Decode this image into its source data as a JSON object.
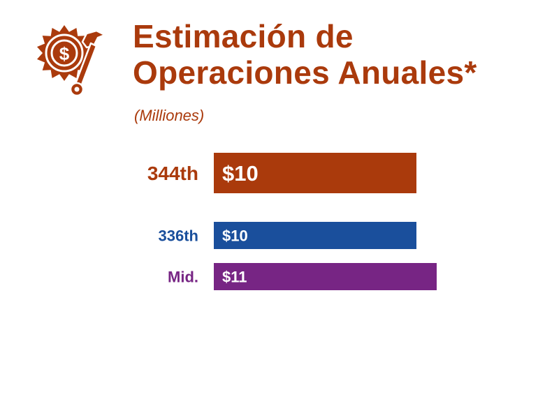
{
  "header": {
    "title_line1": "Estimación de",
    "title_line2": "Operaciones Anuales*",
    "subtitle": "(Milliones)"
  },
  "icon": {
    "name": "gear-dollar-wrench-icon",
    "color": "#aa3a0c"
  },
  "chart_data": {
    "type": "bar",
    "orientation": "horizontal",
    "categories": [
      "344th",
      "336th",
      "Mid."
    ],
    "values": [
      10,
      10,
      11
    ],
    "value_labels": [
      "$10",
      "$10",
      "$11"
    ],
    "colors": [
      "#aa3a0c",
      "#1a4f9c",
      "#772584"
    ],
    "title": "Estimación de Operaciones Anuales*",
    "subtitle": "(Milliones)",
    "xlabel": "",
    "ylabel": "",
    "grid": false,
    "legend": "none"
  }
}
